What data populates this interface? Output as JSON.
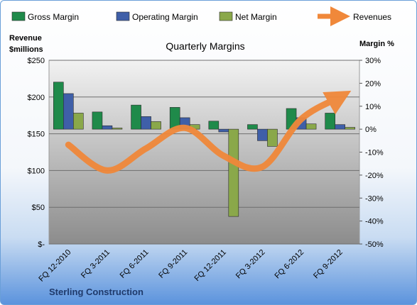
{
  "chart_data": {
    "type": "bar",
    "title": "Quarterly Margins",
    "categories": [
      "FQ 12-2010",
      "FQ 3-2011",
      "FQ 6-2011",
      "FQ 9-2011",
      "FQ 12-2011",
      "FQ 3-2012",
      "FQ 6-2012",
      "FQ 9-2012"
    ],
    "series": [
      {
        "name": "Gross Margin",
        "axis": "right",
        "values": [
          20.5,
          7.5,
          10.5,
          9.5,
          3.5,
          2,
          9,
          7
        ],
        "color": "#1f8a4a"
      },
      {
        "name": "Operating Margin",
        "axis": "right",
        "values": [
          15.5,
          1.5,
          5.5,
          5,
          -1.2,
          -5,
          5,
          2
        ],
        "color": "#3f5fa8"
      },
      {
        "name": "Net Margin",
        "axis": "right",
        "values": [
          7,
          0.5,
          3.3,
          2,
          -38,
          -7.5,
          2.3,
          0.8
        ],
        "color": "#8aa84a"
      },
      {
        "name": "Revenues",
        "axis": "left",
        "type": "line",
        "values": [
          135,
          100,
          130,
          158,
          120,
          105,
          170,
          200
        ],
        "color": "#f0883a"
      }
    ],
    "ylabel_left": "Revenue\n$millions",
    "ylabel_right": "Margin %",
    "ylim_left": [
      0,
      250
    ],
    "ylim_right": [
      -50,
      30
    ],
    "yticks_left": [
      "$250",
      "$200",
      "$150",
      "$100",
      "$50",
      "$-"
    ],
    "yticks_right": [
      "30%",
      "20%",
      "10%",
      "0%",
      "-10%",
      "-20%",
      "-30%",
      "-40%",
      "-50%"
    ],
    "grid": true,
    "legend_position": "top",
    "footer": "Sterling Construction"
  }
}
